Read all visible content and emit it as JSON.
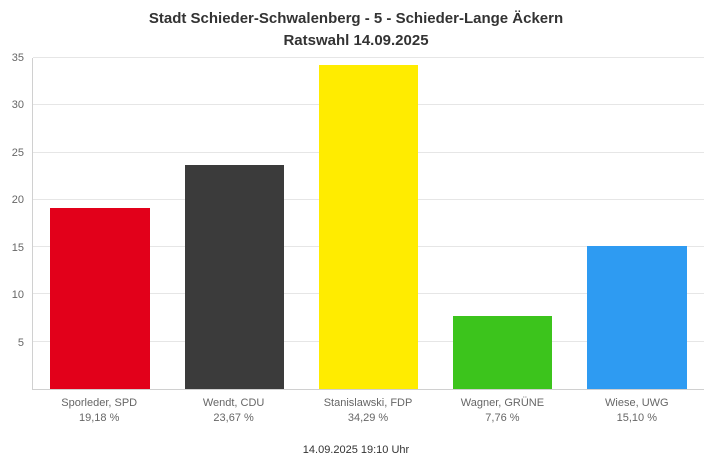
{
  "chart_data": {
    "type": "bar",
    "title": "Stadt Schieder-Schwalenberg - 5 - Schieder-Lange Äckern",
    "subtitle": "Ratswahl 14.09.2025",
    "categories": [
      "Sporleder, SPD",
      "Wendt, CDU",
      "Stanislawski, FDP",
      "Wagner, GRÜNE",
      "Wiese, UWG"
    ],
    "values": [
      19.18,
      23.67,
      34.29,
      7.76,
      15.1
    ],
    "value_labels": [
      "19,18 %",
      "23,67 %",
      "34,29 %",
      "7,76 %",
      "15,10 %"
    ],
    "colors": [
      "#e2001a",
      "#3b3b3b",
      "#ffec00",
      "#3cc41c",
      "#2e9bf2"
    ],
    "ylabel": "",
    "xlabel": "",
    "ylim": [
      0,
      35
    ],
    "ytick_step": 5,
    "grid": true,
    "legend": false
  },
  "footer": {
    "timestamp": "14.09.2025 19:10 Uhr"
  }
}
